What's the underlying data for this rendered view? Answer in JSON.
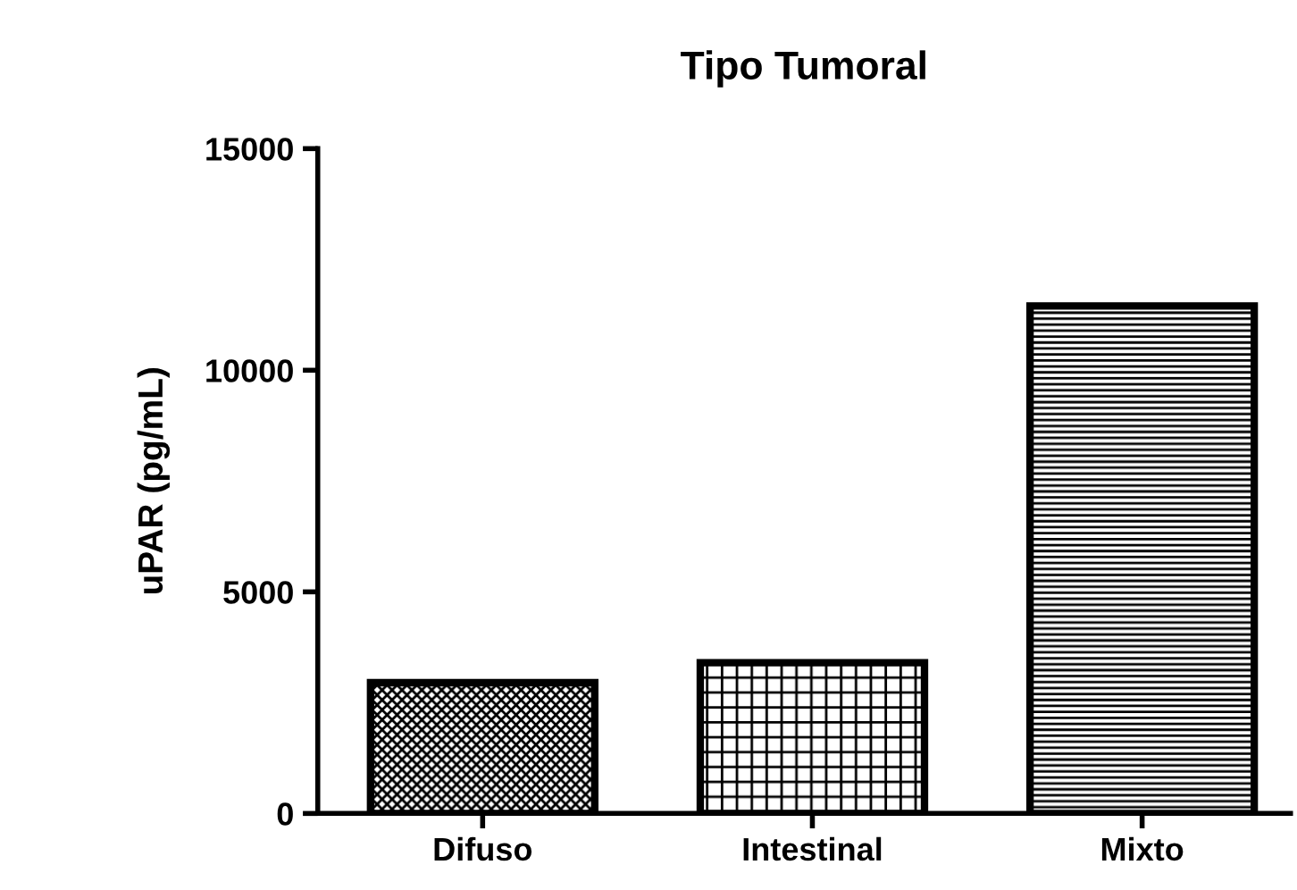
{
  "chart_data": {
    "type": "bar",
    "title": "Tipo Tumoral",
    "ylabel": "uPAR (pg/mL)",
    "categories": [
      "Difuso",
      "Intestinal",
      "Mixto"
    ],
    "values": [
      2950,
      3400,
      11450
    ],
    "ylim": [
      0,
      15000
    ],
    "yticks": [
      0,
      5000,
      10000,
      15000
    ],
    "grid": false,
    "legend": false
  }
}
